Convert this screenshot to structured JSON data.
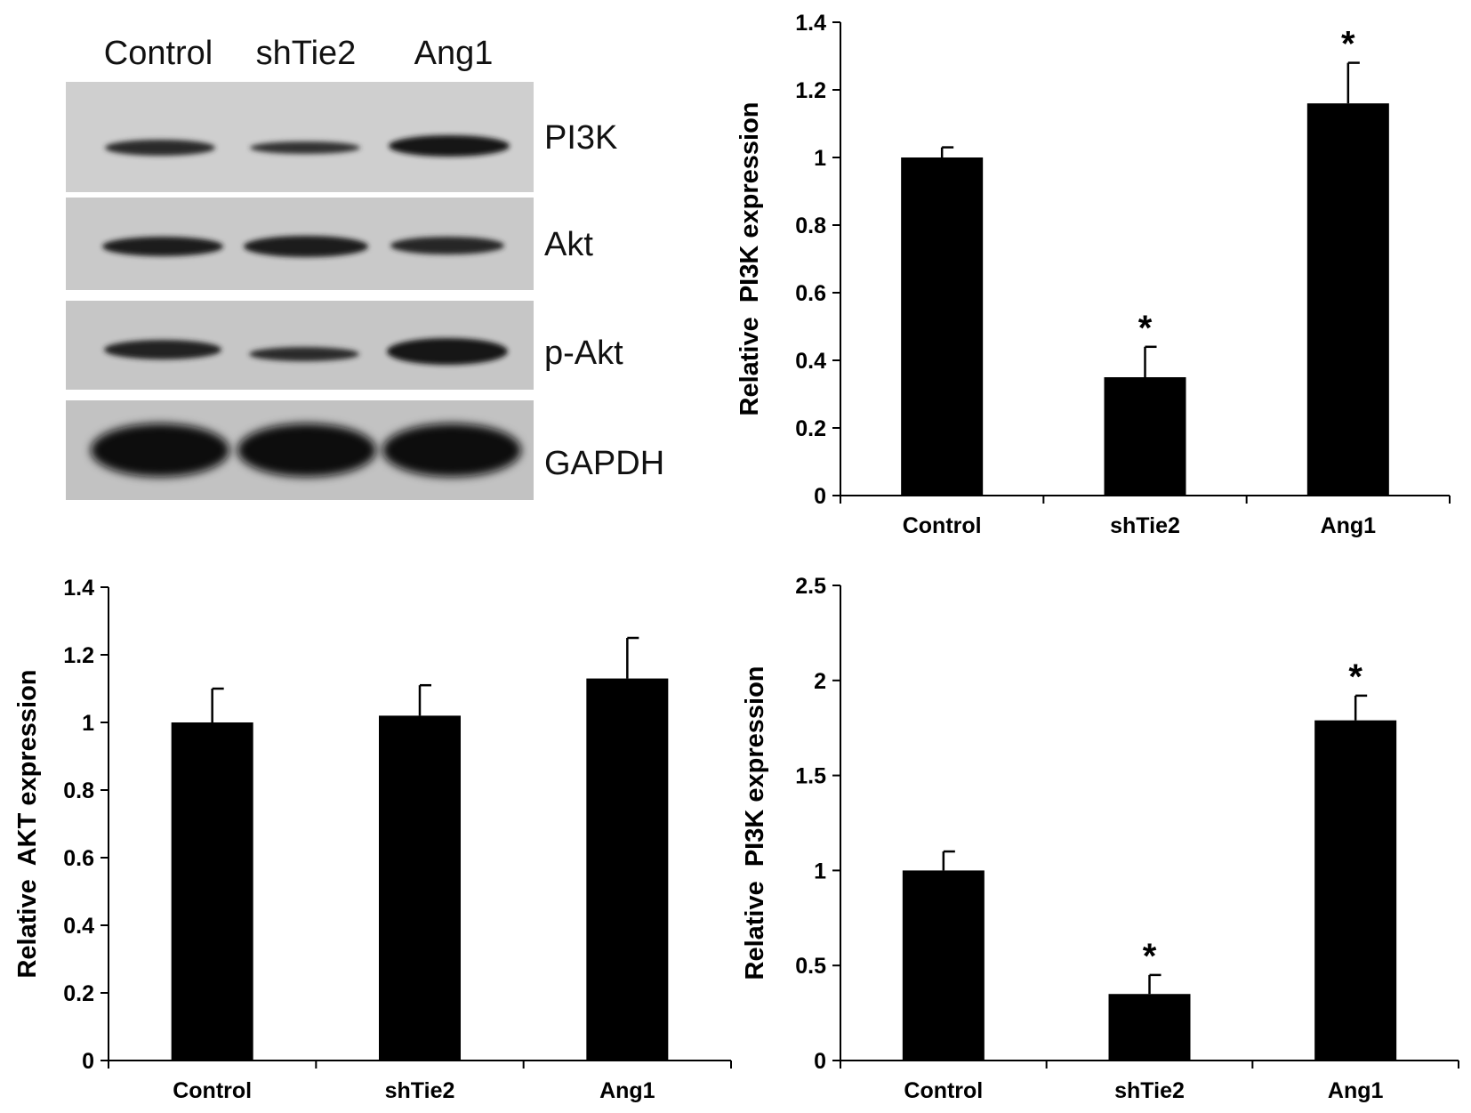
{
  "blot": {
    "lane_labels": [
      "Control",
      "shTie2",
      "Ang1"
    ],
    "rows": [
      {
        "label": "PI3K",
        "band_intensity": [
          0.6,
          0.45,
          0.9
        ]
      },
      {
        "label": "Akt",
        "band_intensity": [
          0.85,
          0.9,
          0.75
        ]
      },
      {
        "label": "p-Akt",
        "band_intensity": [
          0.8,
          0.55,
          0.95
        ]
      },
      {
        "label": "GAPDH",
        "band_intensity": [
          1.0,
          1.0,
          1.0
        ]
      }
    ]
  },
  "chart_data": [
    {
      "type": "bar",
      "categories": [
        "Control",
        "shTie2",
        "Ang1"
      ],
      "values": [
        1.0,
        0.35,
        1.16
      ],
      "errors": [
        0.03,
        0.09,
        0.12
      ],
      "significance": [
        "",
        "*",
        "*"
      ],
      "title": "",
      "xlabel": "",
      "ylabel": "Relative  PI3K expression",
      "ylim": [
        0,
        1.4
      ],
      "yticks": [
        0,
        0.2,
        0.4,
        0.6,
        0.8,
        1,
        1.2,
        1.4
      ],
      "ytick_labels": [
        "0",
        "0.2",
        "0.4",
        "0.6",
        "0.8",
        "1",
        "1.2",
        "1.4"
      ],
      "bar_color": "#000000",
      "grid": false
    },
    {
      "type": "bar",
      "categories": [
        "Control",
        "shTie2",
        "Ang1"
      ],
      "values": [
        1.0,
        1.02,
        1.13
      ],
      "errors": [
        0.1,
        0.09,
        0.12
      ],
      "significance": [
        "",
        "",
        ""
      ],
      "title": "",
      "xlabel": "",
      "ylabel": "Relative  AKT expression",
      "ylim": [
        0,
        1.4
      ],
      "yticks": [
        0,
        0.2,
        0.4,
        0.6,
        0.8,
        1,
        1.2,
        1.4
      ],
      "ytick_labels": [
        "0",
        "0.2",
        "0.4",
        "0.6",
        "0.8",
        "1",
        "1.2",
        "1.4"
      ],
      "bar_color": "#000000",
      "grid": false
    },
    {
      "type": "bar",
      "categories": [
        "Control",
        "shTie2",
        "Ang1"
      ],
      "values": [
        1.0,
        0.35,
        1.79
      ],
      "errors": [
        0.1,
        0.1,
        0.13
      ],
      "significance": [
        "",
        "*",
        "*"
      ],
      "title": "",
      "xlabel": "",
      "ylabel": "Relative  PI3K expression",
      "ylim": [
        0,
        2.5
      ],
      "yticks": [
        0,
        0.5,
        1,
        1.5,
        2,
        2.5
      ],
      "ytick_labels": [
        "0",
        "0.5",
        "1",
        "1.5",
        "2",
        "2.5"
      ],
      "bar_color": "#000000",
      "grid": false
    }
  ]
}
